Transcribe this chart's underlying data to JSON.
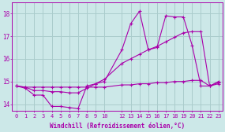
{
  "background_color": "#cce8e8",
  "grid_color": "#aacccc",
  "line_color": "#aa00aa",
  "xlabel": "Windchill (Refroidissement éolien,°C)",
  "xlim": [
    -0.5,
    23.5
  ],
  "ylim": [
    13.7,
    18.5
  ],
  "yticks": [
    14,
    15,
    16,
    17,
    18
  ],
  "xticks": [
    0,
    1,
    2,
    3,
    4,
    5,
    6,
    7,
    8,
    9,
    10,
    12,
    13,
    14,
    15,
    16,
    17,
    18,
    19,
    20,
    21,
    22,
    23
  ],
  "line1_x": [
    0,
    1,
    2,
    3,
    4,
    5,
    6,
    7,
    8,
    9,
    10,
    12,
    13,
    14,
    15,
    16,
    17,
    18,
    19,
    20,
    21,
    22,
    23
  ],
  "line1_y": [
    14.8,
    14.7,
    14.4,
    14.4,
    13.9,
    13.9,
    13.85,
    13.8,
    14.8,
    14.9,
    15.0,
    16.4,
    17.55,
    18.1,
    16.4,
    16.5,
    17.9,
    17.85,
    17.85,
    16.6,
    14.8,
    14.8,
    15.0
  ],
  "line2_x": [
    0,
    1,
    2,
    3,
    4,
    5,
    6,
    7,
    8,
    9,
    10,
    12,
    13,
    14,
    15,
    16,
    17,
    18,
    19,
    20,
    21,
    22,
    23
  ],
  "line2_y": [
    14.8,
    14.75,
    14.75,
    14.75,
    14.75,
    14.75,
    14.75,
    14.75,
    14.75,
    14.75,
    14.75,
    14.85,
    14.85,
    14.9,
    14.9,
    14.95,
    14.95,
    15.0,
    15.0,
    15.05,
    15.05,
    14.8,
    14.9
  ],
  "line3_x": [
    0,
    1,
    2,
    3,
    4,
    5,
    6,
    7,
    8,
    9,
    10,
    12,
    13,
    14,
    15,
    16,
    17,
    18,
    19,
    20,
    21,
    22,
    23
  ],
  "line3_y": [
    14.8,
    14.75,
    14.6,
    14.6,
    14.55,
    14.55,
    14.5,
    14.5,
    14.7,
    14.9,
    15.1,
    15.8,
    16.0,
    16.2,
    16.4,
    16.55,
    16.75,
    16.95,
    17.15,
    17.2,
    17.2,
    14.8,
    14.95
  ]
}
